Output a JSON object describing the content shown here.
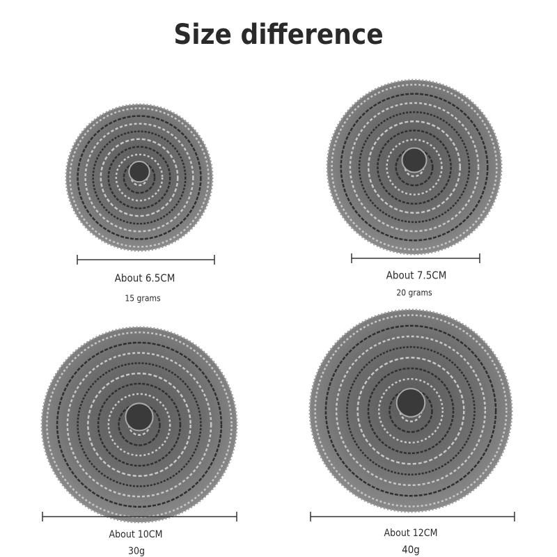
{
  "title": "Size difference",
  "items": [
    {
      "size": "About 6.5CM",
      "weight": "15 grams"
    },
    {
      "size": "About 7.5CM",
      "weight": "20 grams"
    },
    {
      "size": "About 10CM",
      "weight": "30g"
    },
    {
      "size": "About 12CM",
      "weight": "40g"
    }
  ]
}
